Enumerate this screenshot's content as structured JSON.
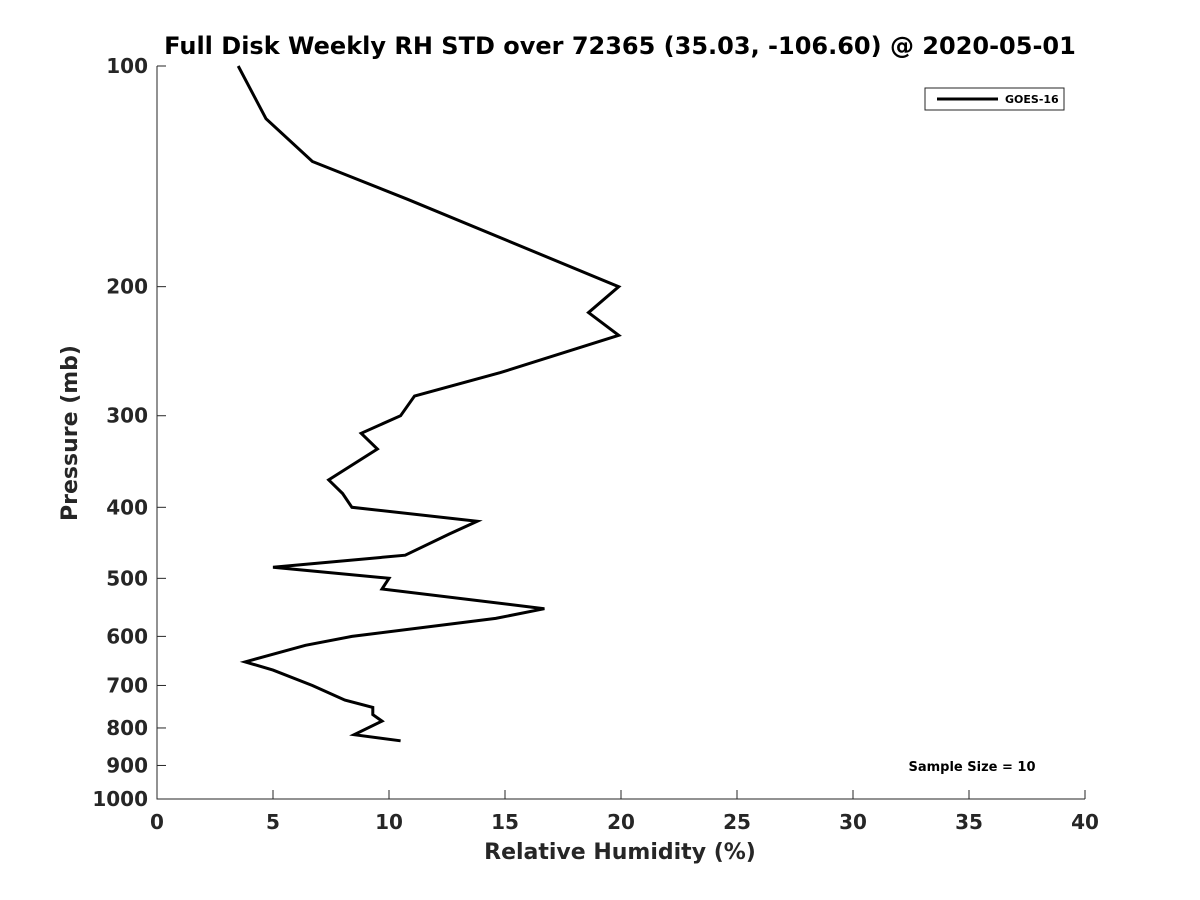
{
  "chart_data": {
    "type": "line",
    "title": "Full Disk Weekly RH STD over 72365 (35.03, -106.60) @ 2020-05-01",
    "xlabel": "Relative Humidity (%)",
    "ylabel": "Pressure (mb)",
    "xlim": [
      0,
      40
    ],
    "ylim": [
      100,
      1000
    ],
    "y_scale": "log",
    "y_reversed": true,
    "x_ticks": [
      0,
      5,
      10,
      15,
      20,
      25,
      30,
      35,
      40
    ],
    "x_tick_labels": [
      "0",
      "5",
      "10",
      "15",
      "20",
      "25",
      "30",
      "35",
      "40"
    ],
    "y_ticks": [
      100,
      200,
      300,
      400,
      500,
      600,
      700,
      800,
      900,
      1000
    ],
    "y_tick_labels": [
      "100",
      "200",
      "300",
      "400",
      "500",
      "600",
      "700",
      "800",
      "900",
      "1000"
    ],
    "grid": false,
    "legend_position": "top-right",
    "series": [
      {
        "name": "GOES-16",
        "color": "#000000",
        "x": [
          3.5,
          4.7,
          6.7,
          10.8,
          19.9,
          18.6,
          19.9,
          14.8,
          11.1,
          10.5,
          8.8,
          9.5,
          7.4,
          8.0,
          8.4,
          13.8,
          12.6,
          10.7,
          5.0,
          10.0,
          9.7,
          16.7,
          14.6,
          8.4,
          6.4,
          3.8,
          5.0,
          6.7,
          8.1,
          9.3,
          9.3,
          9.7,
          8.5,
          10.5
        ],
        "y": [
          100,
          118,
          135,
          152,
          200,
          217,
          233,
          262,
          282,
          300,
          317,
          333,
          367,
          383,
          400,
          418,
          435,
          465,
          483,
          500,
          517,
          550,
          567,
          600,
          617,
          650,
          667,
          700,
          733,
          750,
          767,
          783,
          817,
          833
        ]
      }
    ],
    "annotations": [
      "Sample Size = 10"
    ]
  }
}
